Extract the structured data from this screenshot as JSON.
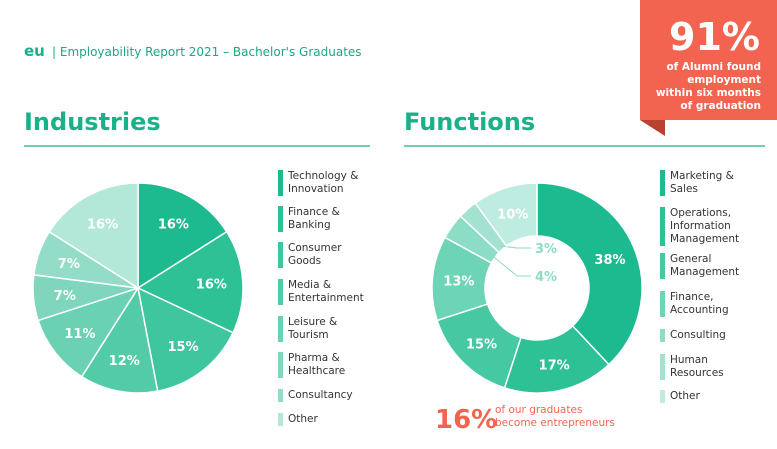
{
  "header": {
    "logo": "eu",
    "text": "| Employability Report 2021 – Bachelor's Graduates"
  },
  "callout": {
    "value": "91%",
    "text": "of Alumni found employment within six months of graduation"
  },
  "chart_data": [
    {
      "type": "pie",
      "title": "Industries",
      "categories": [
        "Technology & Innovation",
        "Finance & Banking",
        "Consumer Goods",
        "Media & Entertainment",
        "Leisure & Tourism",
        "Pharma & Healthcare",
        "Consultancy",
        "Other"
      ],
      "values": [
        16,
        16,
        15,
        12,
        11,
        7,
        7,
        16
      ],
      "value_labels": [
        "16%",
        "16%",
        "15%",
        "12%",
        "11%",
        "7%",
        "7%",
        "16%"
      ],
      "colors": [
        "#1db98f",
        "#2ec196",
        "#3fc69e",
        "#54cba7",
        "#6ad1b2",
        "#7fd6bd",
        "#93dcc8",
        "#b3e8d9"
      ]
    },
    {
      "type": "donut",
      "title": "Functions",
      "categories": [
        "Marketing & Sales",
        "Operations, Information Management",
        "General Management",
        "Finance, Accounting",
        "Consulting",
        "Human Resources",
        "Other"
      ],
      "values": [
        38,
        17,
        15,
        13,
        4,
        3,
        10
      ],
      "value_labels": [
        "38%",
        "17%",
        "15%",
        "13%",
        "4%",
        "3%",
        "10%"
      ],
      "colors": [
        "#1db98f",
        "#2ec196",
        "#46c9a3",
        "#6dd4b6",
        "#8ddcc6",
        "#a3e2d0",
        "#bfece0"
      ]
    }
  ],
  "footnote": {
    "value": "16%",
    "text": "of our graduates become entrepreneurs"
  }
}
